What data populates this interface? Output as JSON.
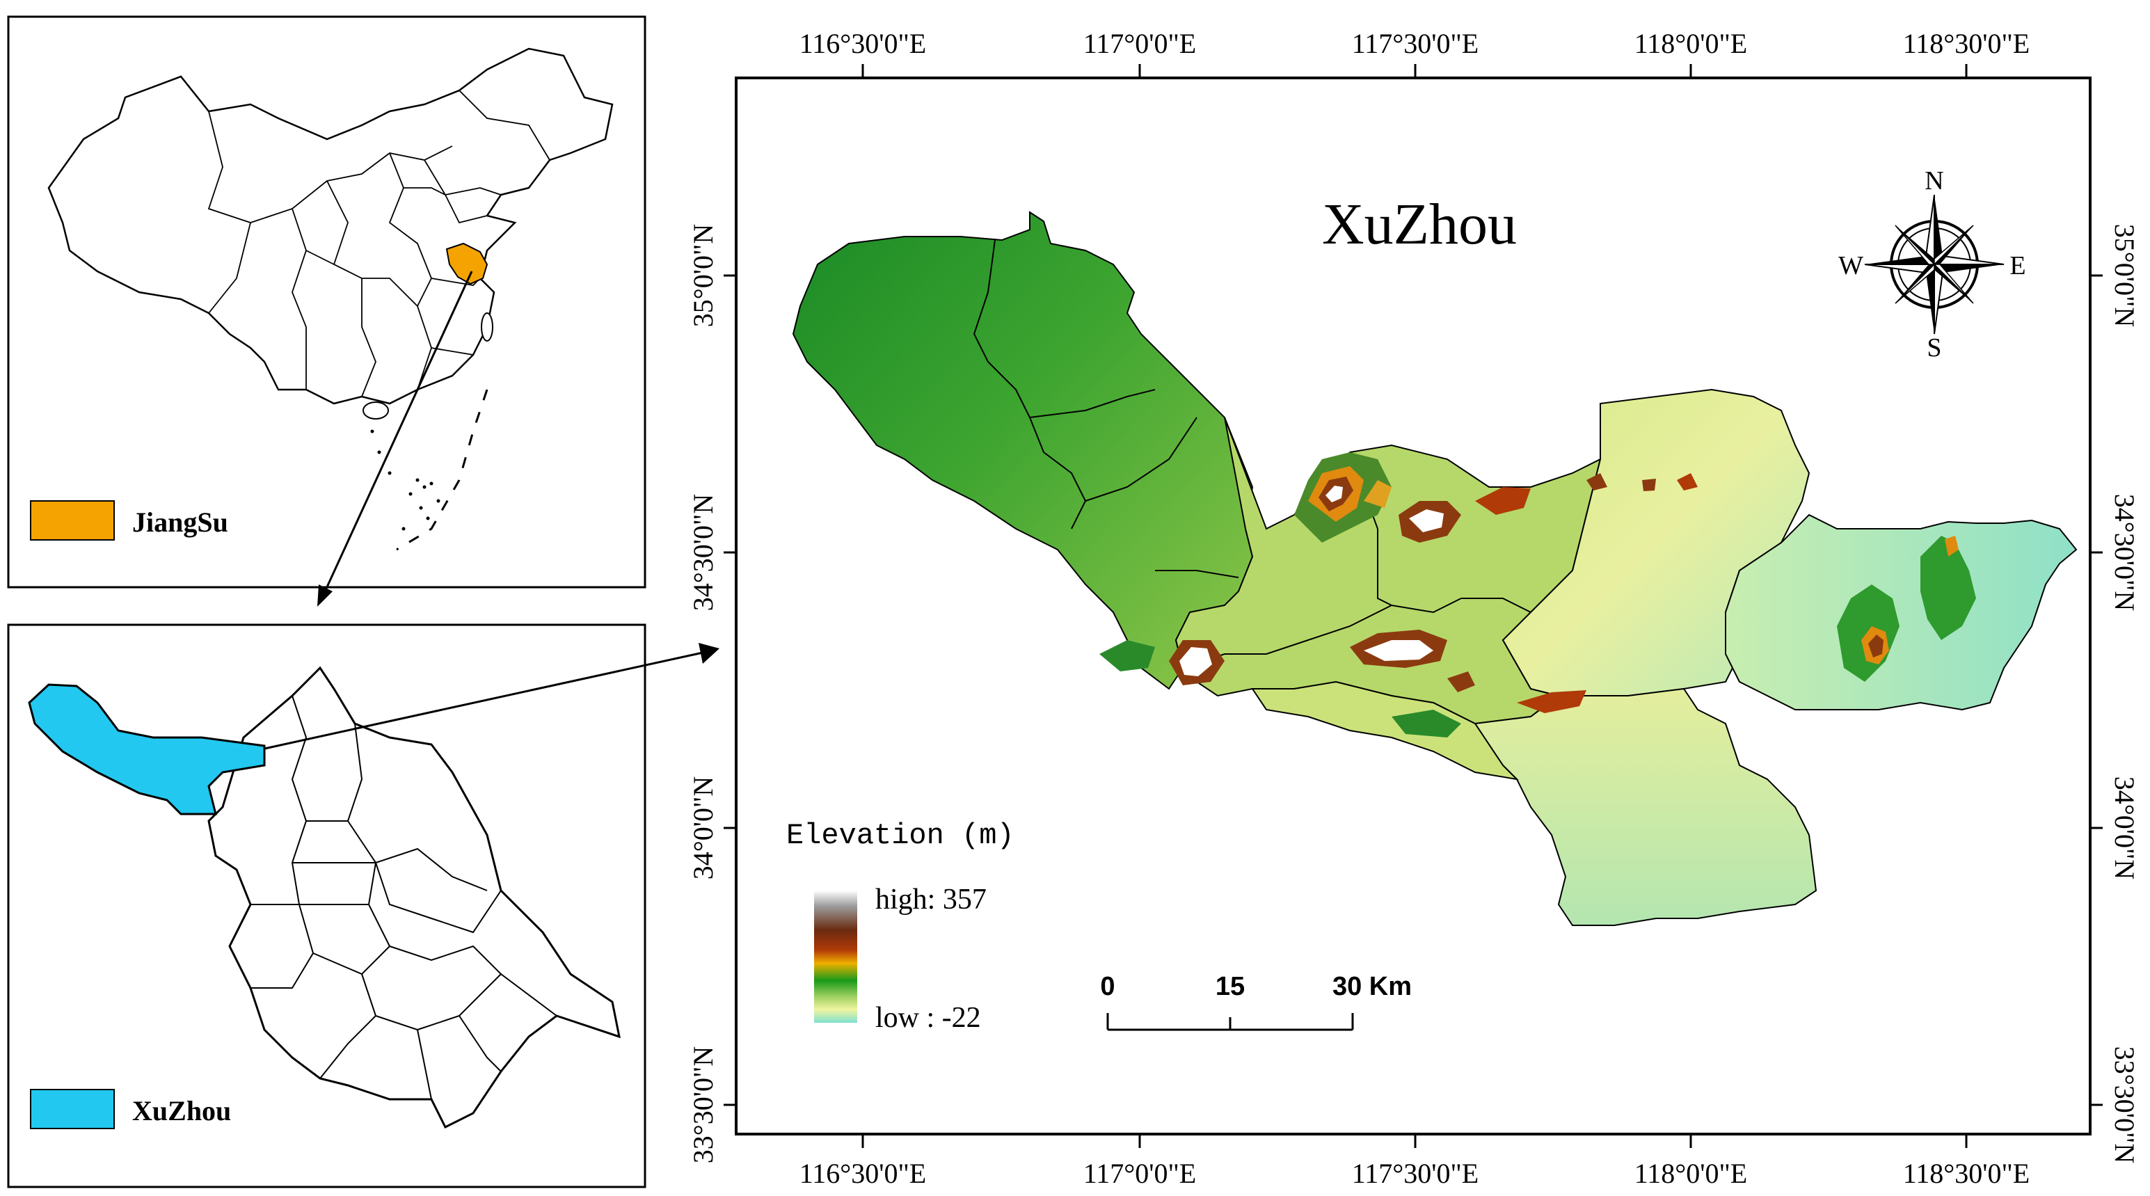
{
  "inset_china": {
    "legend_label": "JiangSu",
    "legend_color": "#f5a300"
  },
  "inset_jiangsu": {
    "legend_label": "XuZhou",
    "legend_color": "#22c8f0"
  },
  "main_map": {
    "title": "XuZhou",
    "top_ticks": [
      "116°30'0\"E",
      "117°0'0\"E",
      "117°30'0\"E",
      "118°0'0\"E",
      "118°30'0\"E"
    ],
    "bottom_ticks": [
      "116°30'0\"E",
      "117°0'0\"E",
      "117°30'0\"E",
      "118°0'0\"E",
      "118°30'0\"E"
    ],
    "left_ticks": [
      "35°0'0\"N",
      "34°30'0\"N",
      "34°0'0\"N",
      "33°30'0\"N"
    ],
    "right_ticks": [
      "35°0'0\"N",
      "34°30'0\"N",
      "34°0'0\"N",
      "33°30'0\"N"
    ],
    "compass": {
      "n": "N",
      "s": "S",
      "e": "E",
      "w": "W"
    },
    "legend": {
      "title": "Elevation (m)",
      "high": "high: 357",
      "low": "low : -22",
      "ramp_colors": [
        "#ffffff",
        "#9a9a9a",
        "#6b2a10",
        "#b03a08",
        "#f0b000",
        "#1a9a1a",
        "#9cd060",
        "#f0f4a0",
        "#7fe0d0"
      ]
    },
    "scale_bar": {
      "labels": [
        "0",
        "15",
        "30 Km"
      ]
    },
    "elevation_colors": {
      "dark_green": "#1f8f2a",
      "mid_green": "#4caf35",
      "light_green": "#9ccc55",
      "pale_yellow": "#e6ef9a",
      "cyan": "#a8e8c8",
      "brown": "#8b3a10",
      "orange": "#e08a10"
    }
  }
}
